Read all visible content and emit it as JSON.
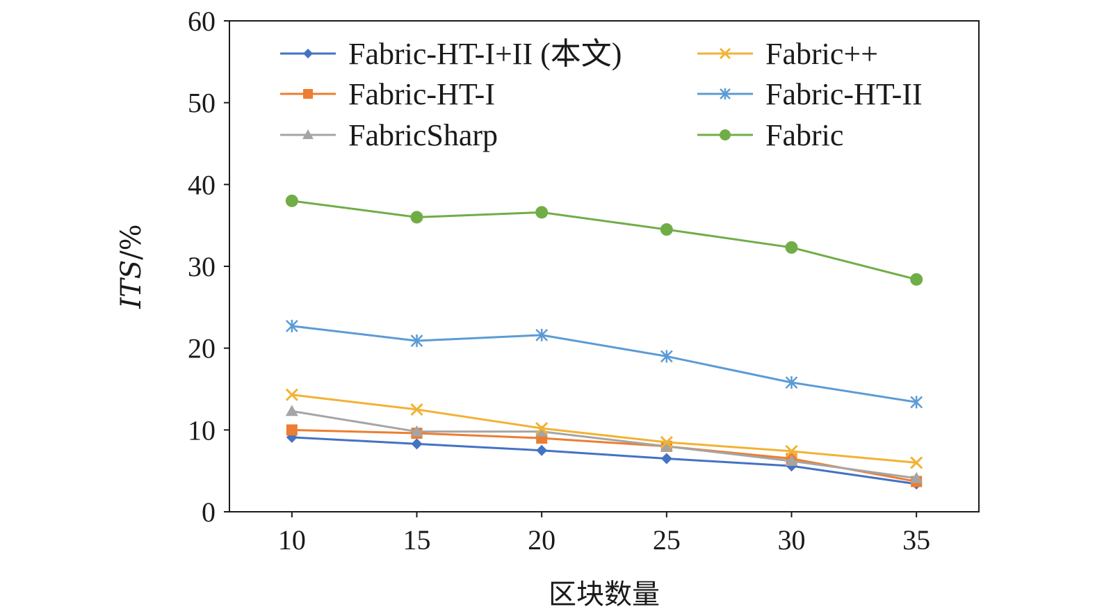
{
  "chart_data": {
    "type": "line",
    "xlabel": "区块数量",
    "ylabel_main": "ITS",
    "ylabel_suffix": "/%",
    "x": [
      10,
      15,
      20,
      25,
      30,
      35
    ],
    "ylim": [
      0,
      60
    ],
    "yticks": [
      0,
      10,
      20,
      30,
      40,
      50,
      60
    ],
    "xticks": [
      10,
      15,
      20,
      25,
      30,
      35
    ],
    "grid": false,
    "legend_position": "top",
    "series": [
      {
        "name": "Fabric-HT-I+II (本文)",
        "color": "#4472C4",
        "marker": "diamond",
        "values": [
          9.1,
          8.3,
          7.5,
          6.5,
          5.6,
          3.4
        ]
      },
      {
        "name": "Fabric-HT-I",
        "color": "#ED7D31",
        "marker": "square",
        "values": [
          10.0,
          9.6,
          9.0,
          8.0,
          6.5,
          3.7
        ]
      },
      {
        "name": "FabricSharp",
        "color": "#A5A5A5",
        "marker": "triangle",
        "values": [
          12.3,
          9.8,
          9.8,
          8.0,
          6.2,
          4.1
        ]
      },
      {
        "name": "Fabric++",
        "color": "#F2B233",
        "marker": "x",
        "values": [
          14.3,
          12.5,
          10.2,
          8.5,
          7.4,
          6.0
        ]
      },
      {
        "name": "Fabric-HT-II",
        "color": "#5B9BD5",
        "marker": "asterisk",
        "values": [
          22.7,
          20.9,
          21.6,
          19.0,
          15.8,
          13.4
        ]
      },
      {
        "name": "Fabric",
        "color": "#70AD47",
        "marker": "circle",
        "values": [
          38.0,
          36.0,
          36.6,
          34.5,
          32.3,
          28.4
        ]
      }
    ]
  }
}
